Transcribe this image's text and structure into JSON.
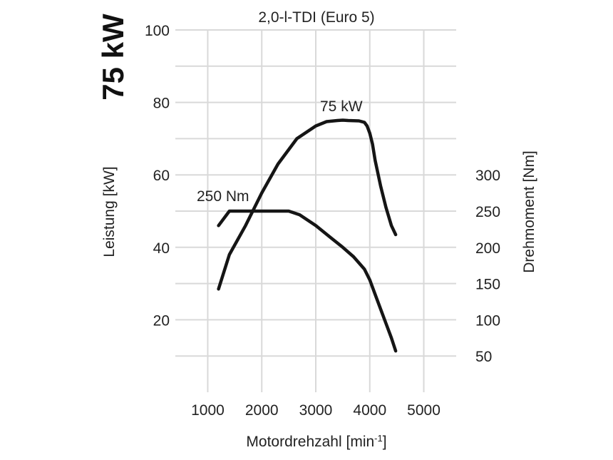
{
  "headline": "75 kW",
  "chart_data": {
    "type": "line",
    "title": "2,0-l-TDI (Euro 5)",
    "xlabel": "Motordrehzahl [min",
    "xlabel_sup": "-1",
    "xlabel_close": "]",
    "ylabel_left": "Leistung [kW]",
    "ylabel_right": "Drehmoment [Nm]",
    "xlim": [
      400,
      5600
    ],
    "ylim_left": [
      0,
      100
    ],
    "ylim_right": [
      0,
      500
    ],
    "x_ticks": [
      1000,
      2000,
      3000,
      4000,
      5000
    ],
    "y_ticks_left": [
      20,
      40,
      60,
      80,
      100
    ],
    "y_ticks_right": [
      50,
      100,
      150,
      200,
      250,
      300
    ],
    "series": [
      {
        "name": "Leistung",
        "axis": "left",
        "label": "75 kW",
        "x": [
          1200,
          1400,
          1700,
          2000,
          2300,
          2650,
          3000,
          3200,
          3400,
          3500,
          3600,
          3800,
          3900,
          3950,
          4000,
          4050,
          4100,
          4200,
          4300,
          4400,
          4480
        ],
        "y": [
          28.5,
          38,
          46,
          55,
          63,
          70,
          73.5,
          74.7,
          75,
          75.1,
          75,
          74.9,
          74.5,
          73.5,
          71.5,
          68.5,
          64,
          57,
          51,
          46,
          43.5
        ]
      },
      {
        "name": "Drehmoment",
        "axis": "right",
        "label": "250 Nm",
        "x": [
          1200,
          1400,
          1500,
          2000,
          2500,
          2700,
          3000,
          3300,
          3500,
          3700,
          3900,
          4000,
          4100,
          4200,
          4300,
          4400,
          4480
        ],
        "y": [
          230,
          250,
          250,
          250,
          250,
          245,
          230,
          212,
          200,
          187,
          170,
          155,
          135,
          115,
          95,
          75,
          57
        ]
      }
    ]
  }
}
